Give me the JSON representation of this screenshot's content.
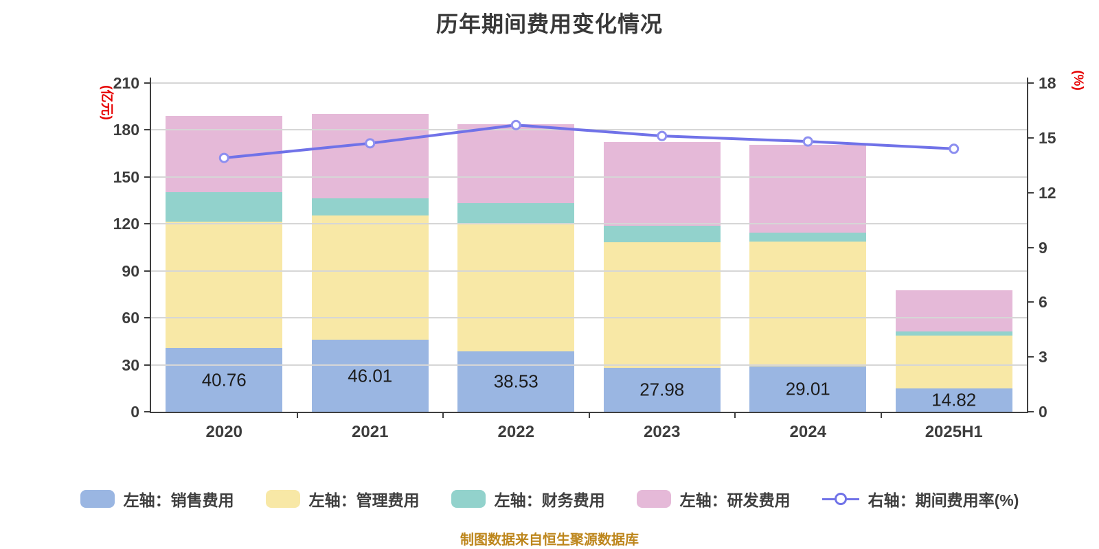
{
  "title": "历年期间费用变化情况",
  "caption": "制图数据来自恒生聚源数据库",
  "colors": {
    "sales_bar": "#9ab6e2",
    "admin_bar": "#f8e8a6",
    "finance_bar": "#92d2cc",
    "rnd_bar": "#e5b9d8",
    "rate_line": "#7072e8",
    "rate_marker_ring": "#8d8ff0",
    "axis": "#3f3f3f",
    "gridline": "#d6d6d6",
    "axis_unit_text": "#e60000",
    "tick_text": "#3d3d3d",
    "title_text": "#383838",
    "caption_text": "#bd861c",
    "bar_label_text": "#1c1c1c"
  },
  "chart_data": {
    "type": "bar",
    "subtype": "stacked-bars-with-line-overlay-dual-axis",
    "grid": true,
    "legend_position": "bottom",
    "categories": [
      "2020",
      "2021",
      "2022",
      "2023",
      "2024",
      "2025H1"
    ],
    "left_axis": {
      "unit": "(亿元)",
      "min": 0,
      "max": 210,
      "ticks": [
        0,
        30,
        60,
        90,
        120,
        150,
        180,
        210
      ]
    },
    "right_axis": {
      "unit": "(%)",
      "min": 0,
      "max": 18,
      "ticks": [
        0,
        3,
        6,
        9,
        12,
        15,
        18
      ]
    },
    "series": [
      {
        "key": "sales",
        "name": "左轴：销售费用",
        "type": "bar",
        "axis": "left",
        "color": "#9ab6e2",
        "values": [
          40.76,
          46.01,
          38.53,
          27.98,
          29.01,
          14.82
        ],
        "data_labels": [
          "40.76",
          "46.01",
          "38.53",
          "27.98",
          "29.01",
          "14.82"
        ]
      },
      {
        "key": "admin",
        "name": "左轴：管理费用",
        "type": "bar",
        "axis": "left",
        "color": "#f8e8a6",
        "values": [
          80.7,
          79.3,
          82.0,
          80.3,
          79.7,
          33.7
        ]
      },
      {
        "key": "finance",
        "name": "左轴：财务费用",
        "type": "bar",
        "axis": "left",
        "color": "#92d2cc",
        "values": [
          18.7,
          10.9,
          12.7,
          10.5,
          5.7,
          3.0
        ]
      },
      {
        "key": "rnd",
        "name": "左轴：研发费用",
        "type": "bar",
        "axis": "left",
        "color": "#e5b9d8",
        "values": [
          49.0,
          54.2,
          50.3,
          53.7,
          56.3,
          26.0
        ]
      },
      {
        "key": "rate",
        "name": "右轴：期间费用率(%)",
        "type": "line",
        "axis": "right",
        "color": "#7072e8",
        "values": [
          13.9,
          14.7,
          15.7,
          15.1,
          14.8,
          14.4
        ]
      }
    ]
  }
}
